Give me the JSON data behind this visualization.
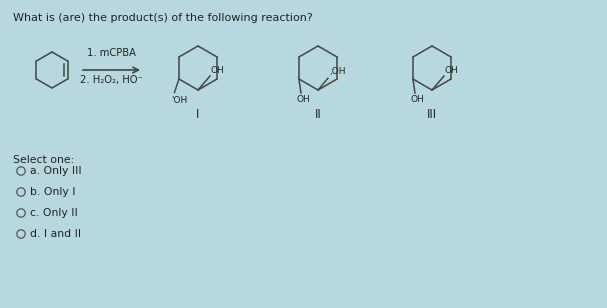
{
  "background_color": "#b8d8e0",
  "fig_width": 6.07,
  "fig_height": 3.08,
  "dpi": 100,
  "question_text": "What is (are) the product(s) of the following reaction?",
  "question_fontsize": 8.0,
  "reagent1": "1. mCPBA",
  "reagent2": "2. H₂O₂, HO⁻",
  "select_one_text": "Select one:",
  "options": [
    "a. Only III",
    "b. Only I",
    "c. Only II",
    "d. I and II"
  ],
  "roman_labels": [
    "I",
    "II",
    "III"
  ],
  "structure_color": "#444444",
  "arrow_color": "#444444",
  "text_color": "#222222"
}
